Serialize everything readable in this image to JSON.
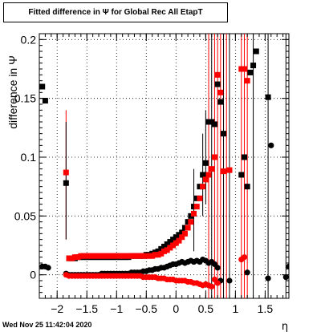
{
  "title": "Fitted difference in  Ψ  for Global Rec All EtapT",
  "footer": {
    "date": "Wed Nov 25 11:42:04 2020"
  },
  "chart_data": {
    "type": "scatter",
    "title": "Fitted difference in  Ψ  for Global Rec All EtapT",
    "xlabel": "η",
    "ylabel": "difference in  Ψ",
    "xlim": [
      -2.3,
      1.9
    ],
    "ylim": [
      -0.02,
      0.205
    ],
    "grid": true,
    "x_ticks": [
      -2,
      -1.5,
      -1,
      -0.5,
      0,
      0.5,
      1,
      1.5
    ],
    "x_tick_labels": [
      "−2",
      "−1.5",
      "−1",
      "−0.5",
      "0",
      "0.5",
      "1",
      "1.5"
    ],
    "y_ticks": [
      0,
      0.05,
      0.1,
      0.15,
      0.2
    ],
    "y_tick_labels": [
      "0",
      "0.05",
      "0.1",
      "0.15",
      "0.2"
    ],
    "series": [
      {
        "color": "#000000",
        "marker": "square",
        "points": [
          [
            -2.25,
            0.16
          ],
          [
            -2.2,
            0.148
          ],
          [
            -1.85,
            0.078
          ],
          [
            -1.8,
            0.014
          ],
          [
            -1.75,
            0.014
          ],
          [
            -1.7,
            0.014
          ],
          [
            -1.65,
            0.015
          ],
          [
            -1.6,
            0.015
          ],
          [
            -1.55,
            0.015
          ],
          [
            -1.5,
            0.015
          ],
          [
            -1.45,
            0.015
          ],
          [
            -1.4,
            0.015
          ],
          [
            -1.35,
            0.015
          ],
          [
            -1.3,
            0.015
          ],
          [
            -1.25,
            0.015
          ],
          [
            -1.2,
            0.015
          ],
          [
            -1.15,
            0.015
          ],
          [
            -1.1,
            0.015
          ],
          [
            -1.05,
            0.015
          ],
          [
            -1.0,
            0.015
          ],
          [
            -0.95,
            0.015
          ],
          [
            -0.9,
            0.015
          ],
          [
            -0.85,
            0.015
          ],
          [
            -0.8,
            0.015
          ],
          [
            -0.75,
            0.016
          ],
          [
            -0.7,
            0.016
          ],
          [
            -0.65,
            0.016
          ],
          [
            -0.6,
            0.016
          ],
          [
            -0.55,
            0.016
          ],
          [
            -0.5,
            0.017
          ],
          [
            -0.45,
            0.017
          ],
          [
            -0.4,
            0.018
          ],
          [
            -0.35,
            0.019
          ],
          [
            -0.3,
            0.02
          ],
          [
            -0.25,
            0.022
          ],
          [
            -0.2,
            0.024
          ],
          [
            -0.15,
            0.026
          ],
          [
            -0.1,
            0.028
          ],
          [
            -0.05,
            0.03
          ],
          [
            0.0,
            0.032
          ],
          [
            0.05,
            0.034
          ],
          [
            0.1,
            0.036
          ],
          [
            0.15,
            0.04
          ],
          [
            0.2,
            0.045
          ],
          [
            0.25,
            0.05
          ],
          [
            0.3,
            0.058
          ],
          [
            0.35,
            0.065
          ],
          [
            0.4,
            0.075
          ],
          [
            0.45,
            0.085
          ],
          [
            0.5,
            0.095
          ],
          [
            0.55,
            0.13
          ],
          [
            0.6,
            0.13
          ],
          [
            0.65,
            0.128
          ],
          [
            0.7,
            0.162
          ],
          [
            0.75,
            0.147
          ],
          [
            0.8,
            0.12
          ],
          [
            1.1,
            0.085
          ],
          [
            1.15,
            0.1
          ],
          [
            1.2,
            0.075
          ],
          [
            1.25,
            0.172
          ],
          [
            1.3,
            0.178
          ],
          [
            1.35,
            0.19
          ],
          [
            1.55,
            0.151
          ]
        ]
      },
      {
        "color": "#ff0000",
        "marker": "square",
        "points": [
          [
            -1.85,
            0.087
          ],
          [
            -1.8,
            0.014
          ],
          [
            -1.75,
            0.014
          ],
          [
            -1.7,
            0.015
          ],
          [
            -1.65,
            0.015
          ],
          [
            -1.6,
            0.016
          ],
          [
            -1.55,
            0.016
          ],
          [
            -1.5,
            0.016
          ],
          [
            -1.45,
            0.016
          ],
          [
            -1.4,
            0.016
          ],
          [
            -1.35,
            0.016
          ],
          [
            -1.3,
            0.016
          ],
          [
            -1.25,
            0.016
          ],
          [
            -1.2,
            0.016
          ],
          [
            -1.15,
            0.016
          ],
          [
            -1.1,
            0.016
          ],
          [
            -1.05,
            0.016
          ],
          [
            -1.0,
            0.016
          ],
          [
            -0.95,
            0.016
          ],
          [
            -0.9,
            0.016
          ],
          [
            -0.85,
            0.016
          ],
          [
            -0.8,
            0.016
          ],
          [
            -0.75,
            0.016
          ],
          [
            -0.7,
            0.016
          ],
          [
            -0.65,
            0.016
          ],
          [
            -0.6,
            0.016
          ],
          [
            -0.55,
            0.016
          ],
          [
            -0.5,
            0.016
          ],
          [
            -0.45,
            0.016
          ],
          [
            -0.4,
            0.016
          ],
          [
            -0.35,
            0.017
          ],
          [
            -0.3,
            0.017
          ],
          [
            -0.25,
            0.018
          ],
          [
            -0.2,
            0.02
          ],
          [
            -0.15,
            0.021
          ],
          [
            -0.1,
            0.023
          ],
          [
            -0.05,
            0.025
          ],
          [
            0.0,
            0.027
          ],
          [
            0.05,
            0.029
          ],
          [
            0.1,
            0.032
          ],
          [
            0.15,
            0.035
          ],
          [
            0.2,
            0.04
          ],
          [
            0.25,
            0.045
          ],
          [
            0.3,
            0.052
          ],
          [
            0.35,
            0.058
          ],
          [
            0.4,
            0.065
          ],
          [
            0.45,
            0.075
          ],
          [
            0.5,
            0.081
          ],
          [
            0.55,
            0.085
          ],
          [
            0.6,
            0.09
          ],
          [
            0.65,
            0.1
          ],
          [
            0.7,
            0.17
          ],
          [
            0.75,
            0.155
          ],
          [
            0.8,
            0.088
          ],
          [
            0.9,
            0.089
          ],
          [
            1.1,
            0.175
          ],
          [
            1.15,
            0.175
          ],
          [
            1.2,
            0.165
          ]
        ]
      },
      {
        "color": "#000000",
        "marker": "circle",
        "points": [
          [
            -2.25,
            0.007
          ],
          [
            -2.2,
            0.007
          ],
          [
            -2.15,
            0.006
          ],
          [
            -1.85,
            0.001
          ],
          [
            -1.8,
            0.0
          ],
          [
            -1.75,
            0.0
          ],
          [
            -1.7,
            0.0
          ],
          [
            -1.65,
            0.0
          ],
          [
            -1.6,
            0.0
          ],
          [
            -1.55,
            0.0
          ],
          [
            -1.5,
            0.0
          ],
          [
            -1.45,
            0.0
          ],
          [
            -1.4,
            0.0
          ],
          [
            -1.35,
            0.0
          ],
          [
            -1.3,
            0.0
          ],
          [
            -1.25,
            0.001
          ],
          [
            -1.2,
            0.001
          ],
          [
            -1.15,
            0.001
          ],
          [
            -1.1,
            0.001
          ],
          [
            -1.05,
            0.001
          ],
          [
            -1.0,
            0.001
          ],
          [
            -0.95,
            0.001
          ],
          [
            -0.9,
            0.001
          ],
          [
            -0.85,
            0.001
          ],
          [
            -0.8,
            0.001
          ],
          [
            -0.75,
            0.002
          ],
          [
            -0.7,
            0.002
          ],
          [
            -0.65,
            0.002
          ],
          [
            -0.6,
            0.002
          ],
          [
            -0.55,
            0.003
          ],
          [
            -0.5,
            0.003
          ],
          [
            -0.45,
            0.004
          ],
          [
            -0.4,
            0.004
          ],
          [
            -0.35,
            0.005
          ],
          [
            -0.3,
            0.005
          ],
          [
            -0.25,
            0.006
          ],
          [
            -0.2,
            0.006
          ],
          [
            -0.15,
            0.007
          ],
          [
            -0.1,
            0.008
          ],
          [
            -0.05,
            0.009
          ],
          [
            0.0,
            0.009
          ],
          [
            0.05,
            0.01
          ],
          [
            0.1,
            0.011
          ],
          [
            0.15,
            0.01
          ],
          [
            0.2,
            0.011
          ],
          [
            0.25,
            0.012
          ],
          [
            0.3,
            0.011
          ],
          [
            0.35,
            0.012
          ],
          [
            0.4,
            0.011
          ],
          [
            0.45,
            0.013
          ],
          [
            0.5,
            0.012
          ],
          [
            0.55,
            0.01
          ],
          [
            0.6,
            0.011
          ],
          [
            0.65,
            0.009
          ],
          [
            0.7,
            0.006
          ],
          [
            0.75,
            -0.005
          ],
          [
            0.9,
            -0.005
          ],
          [
            1.2,
            0.002
          ],
          [
            1.55,
            -0.003
          ],
          [
            1.6,
            0.11
          ],
          [
            1.85,
            -0.002
          ],
          [
            1.9,
            0.007
          ]
        ]
      },
      {
        "color": "#ff0000",
        "marker": "circle",
        "points": [
          [
            -1.85,
            0.0
          ],
          [
            -1.8,
            -0.001
          ],
          [
            -1.75,
            -0.001
          ],
          [
            -1.7,
            -0.001
          ],
          [
            -1.65,
            -0.001
          ],
          [
            -1.6,
            -0.001
          ],
          [
            -1.55,
            -0.001
          ],
          [
            -1.5,
            -0.001
          ],
          [
            -1.45,
            -0.001
          ],
          [
            -1.4,
            -0.001
          ],
          [
            -1.35,
            -0.001
          ],
          [
            -1.3,
            -0.001
          ],
          [
            -1.25,
            -0.001
          ],
          [
            -1.2,
            -0.001
          ],
          [
            -1.15,
            -0.001
          ],
          [
            -1.1,
            -0.001
          ],
          [
            -1.05,
            -0.001
          ],
          [
            -1.0,
            -0.001
          ],
          [
            -0.95,
            -0.001
          ],
          [
            -0.9,
            -0.001
          ],
          [
            -0.85,
            -0.001
          ],
          [
            -0.8,
            -0.001
          ],
          [
            -0.75,
            -0.001
          ],
          [
            -0.7,
            -0.001
          ],
          [
            -0.65,
            -0.001
          ],
          [
            -0.6,
            -0.001
          ],
          [
            -0.55,
            -0.002
          ],
          [
            -0.5,
            -0.002
          ],
          [
            -0.45,
            -0.002
          ],
          [
            -0.4,
            -0.002
          ],
          [
            -0.35,
            -0.002
          ],
          [
            -0.3,
            -0.003
          ],
          [
            -0.25,
            -0.003
          ],
          [
            -0.2,
            -0.003
          ],
          [
            -0.15,
            -0.004
          ],
          [
            -0.1,
            -0.004
          ],
          [
            -0.05,
            -0.004
          ],
          [
            0.0,
            -0.005
          ],
          [
            0.05,
            -0.005
          ],
          [
            0.1,
            -0.005
          ],
          [
            0.15,
            -0.005
          ],
          [
            0.2,
            -0.006
          ],
          [
            0.25,
            -0.006
          ],
          [
            0.3,
            -0.007
          ],
          [
            0.35,
            -0.007
          ],
          [
            0.4,
            -0.008
          ],
          [
            0.45,
            -0.009
          ],
          [
            0.5,
            -0.008
          ],
          [
            0.55,
            -0.009
          ],
          [
            0.6,
            -0.01
          ],
          [
            0.65,
            -0.004
          ],
          [
            0.7,
            -0.007
          ],
          [
            1.1,
            0.013
          ],
          [
            1.15,
            0.015
          ]
        ]
      }
    ],
    "error_bars": [
      {
        "color": "#ff0000",
        "x": -1.85,
        "low": 0.03,
        "high": 0.14
      },
      {
        "color": "#000000",
        "x": -1.85,
        "low": 0.03,
        "high": 0.13
      },
      {
        "color": "#ff0000",
        "x": 0.55,
        "low": -0.02,
        "high": 0.205
      },
      {
        "color": "#ff0000",
        "x": 0.65,
        "low": -0.02,
        "high": 0.205
      },
      {
        "color": "#ff0000",
        "x": 0.7,
        "low": -0.02,
        "high": 0.205
      },
      {
        "color": "#ff0000",
        "x": 0.75,
        "low": -0.02,
        "high": 0.205
      },
      {
        "color": "#ff0000",
        "x": 0.85,
        "low": -0.02,
        "high": 0.205
      },
      {
        "color": "#ff0000",
        "x": 1.1,
        "low": -0.02,
        "high": 0.205
      },
      {
        "color": "#ff0000",
        "x": 1.15,
        "low": -0.02,
        "high": 0.205
      },
      {
        "color": "#ff0000",
        "x": 1.2,
        "low": -0.02,
        "high": 0.205
      },
      {
        "color": "#000000",
        "x": 0.6,
        "low": -0.02,
        "high": 0.205
      },
      {
        "color": "#000000",
        "x": 0.8,
        "low": -0.02,
        "high": 0.205
      },
      {
        "color": "#000000",
        "x": 0.9,
        "low": -0.02,
        "high": 0.205
      },
      {
        "color": "#000000",
        "x": 1.3,
        "low": -0.02,
        "high": 0.205
      },
      {
        "color": "#000000",
        "x": 1.55,
        "low": -0.02,
        "high": 0.205
      },
      {
        "color": "#000000",
        "x": 1.85,
        "low": -0.02,
        "high": 0.205
      },
      {
        "color": "#000000",
        "x": 0.3,
        "low": 0.02,
        "high": 0.09
      },
      {
        "color": "#000000",
        "x": 0.45,
        "low": 0.05,
        "high": 0.12
      },
      {
        "color": "#000000",
        "x": 0.5,
        "low": 0.06,
        "high": 0.14
      }
    ]
  }
}
